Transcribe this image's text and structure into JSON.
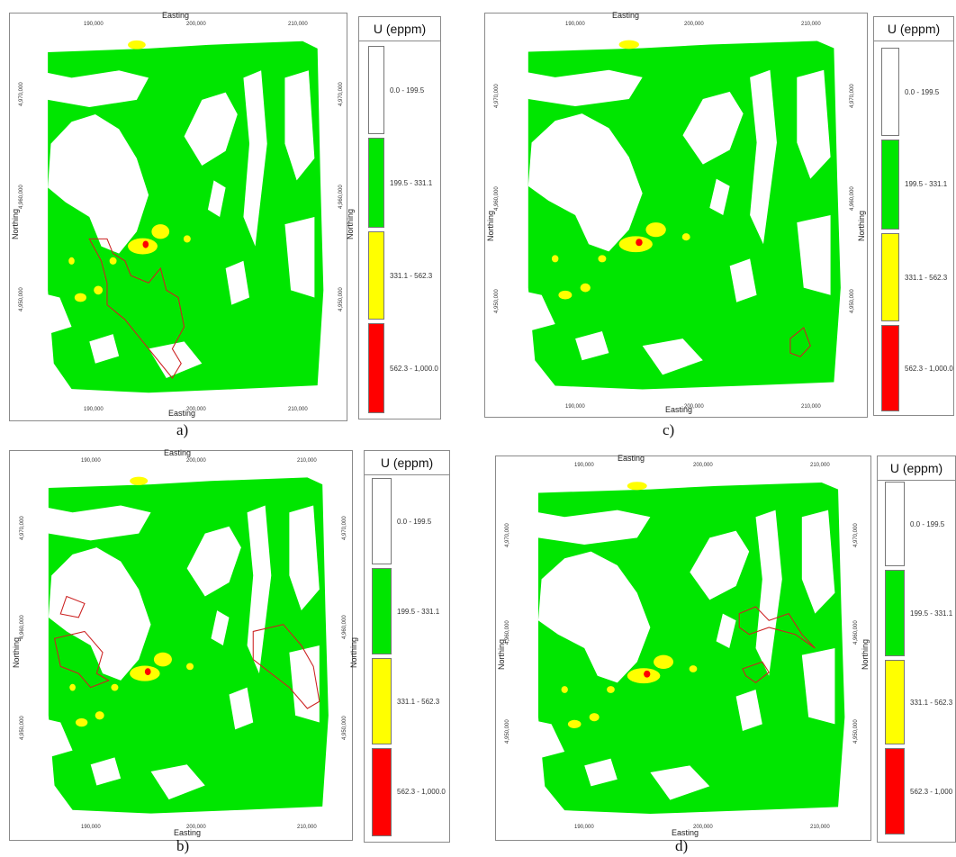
{
  "legend": {
    "title": "U (eppm)",
    "classes": [
      {
        "label": "0.0 - 199.5",
        "color": "#ffffff"
      },
      {
        "label": "199.5 - 331.1",
        "color": "#00e600"
      },
      {
        "label": "331.1 - 562.3",
        "color": "#ffff00"
      },
      {
        "label": "562.3 - 1,000.0",
        "color": "#ff0000"
      }
    ]
  },
  "legend_d_labels": [
    "0.0 - 199.5",
    "199.5 - 331.1",
    "331.1 - 562.3",
    "562.3 - 1,000"
  ],
  "axes": {
    "easting_title": "Easting",
    "northing_title": "Northing",
    "easting_ticks": [
      "190,000",
      "200,000",
      "210,000"
    ],
    "northing_ticks": [
      "4,950,000",
      "4,960,000",
      "4,970,000"
    ]
  },
  "panels": [
    {
      "id": "a",
      "caption": "a)"
    },
    {
      "id": "b",
      "caption": "b)"
    },
    {
      "id": "c",
      "caption": "c)"
    },
    {
      "id": "d",
      "caption": "d)"
    }
  ],
  "colors": {
    "low": "#ffffff",
    "mid": "#00e600",
    "high": "#ffff00",
    "peak": "#ff0000",
    "outline": "#cc2222"
  }
}
